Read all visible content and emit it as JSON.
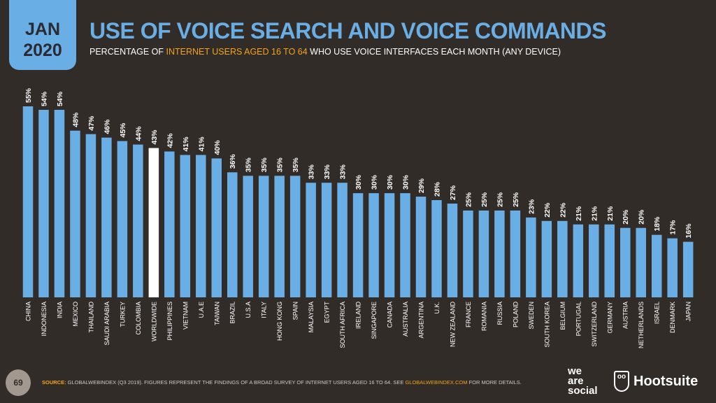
{
  "header": {
    "date_month": "JAN",
    "date_year": "2020",
    "title": "USE OF VOICE SEARCH AND VOICE COMMANDS",
    "subtitle_pre": "PERCENTAGE OF ",
    "subtitle_highlight": "INTERNET USERS AGED 16 TO 64",
    "subtitle_post": " WHO USE VOICE INTERFACES EACH MONTH (ANY DEVICE)"
  },
  "colors": {
    "background": "#322c28",
    "bar": "#6aaee6",
    "highlight_bar": "#ffffff",
    "accent": "#f2a31c"
  },
  "chart_data": {
    "type": "bar",
    "title": "",
    "xlabel": "",
    "ylabel": "",
    "ylim": [
      0,
      55
    ],
    "grid": false,
    "value_suffix": "%",
    "highlight": "WORLDWIDE",
    "categories": [
      "CHINA",
      "INDONESIA",
      "INDIA",
      "MEXICO",
      "THAILAND",
      "SAUDI ARABIA",
      "TURKEY",
      "COLOMBIA",
      "WORLDWIDE",
      "PHILIPPINES",
      "VIETNAM",
      "U.A.E",
      "TAIWAN",
      "BRAZIL",
      "U.S.A",
      "ITALY",
      "HONG KONG",
      "SPAIN",
      "MALAYSIA",
      "EGYPT",
      "SOUTH AFRICA",
      "IRELAND",
      "SINGAPORE",
      "CANADA",
      "AUSTRALIA",
      "ARGENTINA",
      "U.K.",
      "NEW ZEALAND",
      "FRANCE",
      "ROMANIA",
      "RUSSIA",
      "POLAND",
      "SWEDEN",
      "SOUTH KOREA",
      "BELGIUM",
      "PORTUGAL",
      "SWITZERLAND",
      "GERMANY",
      "AUSTRIA",
      "NETHERLANDS",
      "ISRAEL",
      "DENMARK",
      "JAPAN"
    ],
    "values": [
      55,
      54,
      54,
      48,
      47,
      46,
      45,
      44,
      43,
      42,
      41,
      41,
      40,
      36,
      35,
      35,
      35,
      35,
      33,
      33,
      33,
      30,
      30,
      30,
      30,
      29,
      28,
      27,
      25,
      25,
      25,
      25,
      23,
      22,
      22,
      21,
      21,
      21,
      20,
      20,
      18,
      17,
      16
    ]
  },
  "footer": {
    "page": "69",
    "source_label": "SOURCE:",
    "source_text": " GLOBALWEBINDEX (Q3 2019). FIGURES REPRESENT THE FINDINGS OF A BROAD SURVEY OF INTERNET USERS AGED 16 TO 64. SEE ",
    "source_link": "GLOBALWEBINDEX.COM",
    "source_end": " FOR MORE DETAILS."
  },
  "logos": {
    "we_are_social": [
      "we",
      "are",
      "social"
    ],
    "hootsuite": "Hootsuite"
  }
}
